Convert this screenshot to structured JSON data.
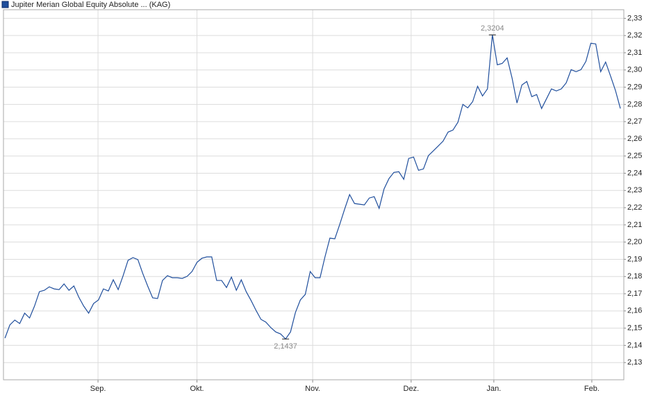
{
  "chart_data": {
    "type": "line",
    "series": [
      {
        "name": "Jupiter Merian Global Equity Absolute ... (KAG)",
        "color": "#1f4e9c",
        "values": [
          2.1442,
          2.1519,
          2.1547,
          2.1527,
          2.1587,
          2.1559,
          2.1628,
          2.1712,
          2.172,
          2.174,
          2.1728,
          2.1724,
          2.1757,
          2.172,
          2.1745,
          2.168,
          2.1628,
          2.1587,
          2.1643,
          2.1664,
          2.1728,
          2.1716,
          2.1781,
          2.1724,
          2.1805,
          2.1894,
          2.191,
          2.1898,
          2.1817,
          2.1744,
          2.1676,
          2.1672,
          2.1777,
          2.1805,
          2.1793,
          2.1793,
          2.1789,
          2.1801,
          2.1829,
          2.1882,
          2.1906,
          2.1914,
          2.1914,
          2.1777,
          2.1777,
          2.1736,
          2.1797,
          2.172,
          2.1781,
          2.1712,
          2.166,
          2.1603,
          2.1551,
          2.1535,
          2.1503,
          2.1478,
          2.1466,
          2.1437,
          2.1478,
          2.1591,
          2.1664,
          2.1696,
          2.1829,
          2.1793,
          2.1793,
          2.1914,
          2.2023,
          2.2019,
          2.2103,
          2.2192,
          2.2276,
          2.2224,
          2.222,
          2.2216,
          2.2256,
          2.2264,
          2.2196,
          2.2309,
          2.2369,
          2.2405,
          2.2409,
          2.2365,
          2.2486,
          2.2494,
          2.2417,
          2.2425,
          2.2502,
          2.253,
          2.2558,
          2.2587,
          2.2639,
          2.2651,
          2.2696,
          2.28,
          2.278,
          2.2816,
          2.2905,
          2.2849,
          2.289,
          2.3204,
          2.303,
          2.3038,
          2.307,
          2.2953,
          2.2808,
          2.2913,
          2.2933,
          2.2845,
          2.2857,
          2.2776,
          2.2833,
          2.289,
          2.2878,
          2.289,
          2.2925,
          2.3002,
          2.299,
          2.3002,
          2.305,
          2.3155,
          2.3151,
          2.299,
          2.3046,
          2.2965,
          2.2881,
          2.2776
        ]
      }
    ],
    "x": [
      0,
      1,
      2,
      3,
      4,
      5,
      6,
      7,
      8,
      9,
      10,
      11,
      12,
      13,
      14,
      15,
      16,
      17,
      18,
      19,
      20,
      21,
      22,
      23,
      24,
      25,
      26,
      27,
      28,
      29,
      30,
      31,
      32,
      33,
      34,
      35,
      36,
      37,
      38,
      39,
      40,
      41,
      42,
      43,
      44,
      45,
      46,
      47,
      48,
      49,
      50,
      51,
      52,
      53,
      54,
      55,
      56,
      57,
      58,
      59,
      60,
      61,
      62,
      63,
      64,
      65,
      66,
      67,
      68,
      69,
      70,
      71,
      72,
      73,
      74,
      75,
      76,
      77,
      78,
      79,
      80,
      81,
      82,
      83,
      84,
      85,
      86,
      87,
      88,
      89,
      90,
      91,
      92,
      93,
      94,
      95,
      96,
      97,
      98,
      99,
      100,
      101,
      102,
      103,
      104,
      105,
      106,
      107,
      108,
      109,
      110,
      111,
      112,
      113,
      114,
      115,
      116,
      117,
      118,
      119,
      120,
      121,
      122,
      123,
      124,
      125
    ],
    "xlim": [
      -0.3,
      125.7
    ],
    "xticks": [
      {
        "value": 18.9,
        "label": "Sep."
      },
      {
        "value": 39.0,
        "label": "Okt."
      },
      {
        "value": 62.5,
        "label": "Nov."
      },
      {
        "value": 82.5,
        "label": "Dez."
      },
      {
        "value": 99.3,
        "label": "Jan."
      },
      {
        "value": 119.2,
        "label": "Feb."
      }
    ],
    "ylim": [
      2.12,
      2.335
    ],
    "yticks": [
      {
        "value": 2.13,
        "label": "2,13"
      },
      {
        "value": 2.14,
        "label": "2,14"
      },
      {
        "value": 2.15,
        "label": "2,15"
      },
      {
        "value": 2.16,
        "label": "2,16"
      },
      {
        "value": 2.17,
        "label": "2,17"
      },
      {
        "value": 2.18,
        "label": "2,18"
      },
      {
        "value": 2.19,
        "label": "2,19"
      },
      {
        "value": 2.2,
        "label": "2,20"
      },
      {
        "value": 2.21,
        "label": "2,21"
      },
      {
        "value": 2.22,
        "label": "2,22"
      },
      {
        "value": 2.23,
        "label": "2,23"
      },
      {
        "value": 2.24,
        "label": "2,24"
      },
      {
        "value": 2.25,
        "label": "2,25"
      },
      {
        "value": 2.26,
        "label": "2,26"
      },
      {
        "value": 2.27,
        "label": "2,27"
      },
      {
        "value": 2.28,
        "label": "2,28"
      },
      {
        "value": 2.29,
        "label": "2,29"
      },
      {
        "value": 2.3,
        "label": "2,30"
      },
      {
        "value": 2.31,
        "label": "2,31"
      },
      {
        "value": 2.32,
        "label": "2,32"
      },
      {
        "value": 2.33,
        "label": "2,33"
      }
    ],
    "grid": true,
    "annotations": [
      {
        "text": "2,3204",
        "x": 99,
        "y": 2.3204
      },
      {
        "text": "2,1437",
        "x": 57,
        "y": 2.1437
      }
    ]
  }
}
